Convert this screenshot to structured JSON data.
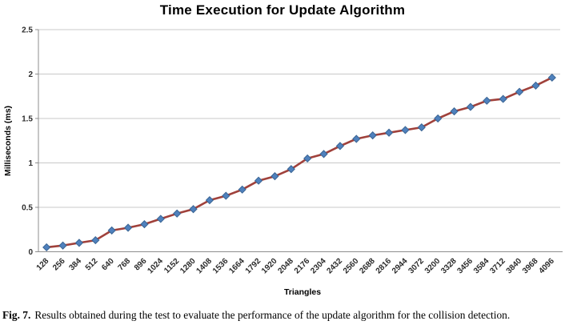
{
  "chart_data": {
    "type": "line",
    "title": "Time Execution for Update Algorithm",
    "xlabel": "Triangles",
    "ylabel": "Milliseconds  (ms)",
    "categories": [
      "128",
      "256",
      "384",
      "512",
      "640",
      "768",
      "896",
      "1024",
      "1152",
      "1280",
      "1408",
      "1536",
      "1664",
      "1792",
      "1920",
      "2048",
      "2176",
      "2304",
      "2432",
      "2560",
      "2688",
      "2816",
      "2944",
      "3072",
      "3200",
      "3328",
      "3456",
      "3584",
      "3712",
      "3840",
      "3968",
      "4096"
    ],
    "values": [
      0.05,
      0.07,
      0.1,
      0.13,
      0.24,
      0.27,
      0.31,
      0.37,
      0.43,
      0.48,
      0.58,
      0.63,
      0.7,
      0.8,
      0.85,
      0.93,
      1.05,
      1.1,
      1.19,
      1.27,
      1.31,
      1.34,
      1.37,
      1.4,
      1.5,
      1.58,
      1.63,
      1.7,
      1.72,
      1.8,
      1.87,
      1.96
    ],
    "ylim": [
      0,
      2.5
    ],
    "ytick_interval": 0.5,
    "yticks": [
      "0",
      "0.5",
      "1",
      "1.5",
      "2",
      "2.5"
    ],
    "grid": "horizontal",
    "legend": "none",
    "marker": "diamond",
    "colors": {
      "line": "#A0413B",
      "marker_fill": "#4F81BD",
      "marker_stroke": "#3A6493",
      "gridline": "#C8C8C8",
      "axis": "#8E8E8E",
      "tick_text": "#2B2B2B",
      "title_text": "#000000"
    }
  },
  "caption": {
    "label": "Fig. 7.",
    "text": "Results obtained during the test to evaluate the performance of the update algorithm for the collision detection."
  }
}
